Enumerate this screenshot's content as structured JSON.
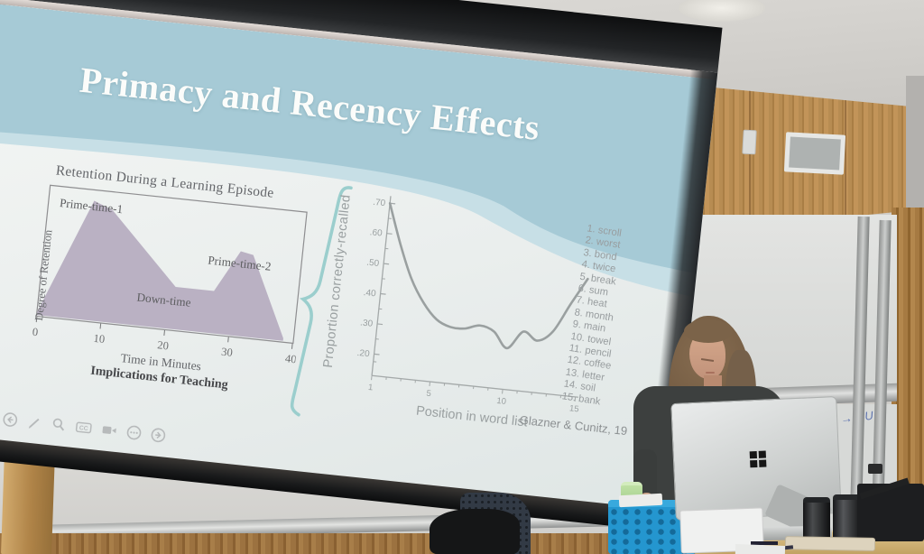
{
  "slide": {
    "title": "Primacy and Recency Effects",
    "banner_color": "#a6cad6",
    "accent_color": "#9bcecd",
    "left_chart": {
      "title": "Retention During a Learning Episode",
      "ylabel": "Degree of Retention",
      "xlabel": "Time in Minutes",
      "caption": "Implications for Teaching",
      "peak1_label": "Prime-time-1",
      "peak2_label": "Prime-time-2",
      "valley_label": "Down-time",
      "xticks": [
        "0",
        "10",
        "20",
        "30",
        "40"
      ]
    },
    "right_chart": {
      "ylabel": "Proportion correctly-recalled",
      "xlabel": "Position in word list",
      "ytick_labels": [
        ".70",
        ".60",
        ".50",
        ".40",
        ".30",
        ".20"
      ],
      "xtick_labels": [
        "1",
        "5",
        "10",
        "15"
      ]
    },
    "word_list": [
      "scroll",
      "worst",
      "bond",
      "twice",
      "break",
      "sum",
      "heat",
      "month",
      "main",
      "towel",
      "pencil",
      "coffee",
      "letter",
      "soil",
      "bank"
    ],
    "citation": "Glazner & Cunitz, 19",
    "toolbar": {
      "icons": [
        "back",
        "pen",
        "zoom",
        "closed-captions",
        "camera",
        "more",
        "forward"
      ],
      "cc_label": "CC"
    }
  },
  "whiteboard": {
    "scribble": "3x0 → 5Ue"
  },
  "chart_data": [
    {
      "type": "area",
      "title": "Retention During a Learning Episode",
      "xlabel": "Time in Minutes",
      "ylabel": "Degree of Retention",
      "caption": "Implications for Teaching",
      "xlim": [
        0,
        40
      ],
      "xticks": [
        0,
        10,
        20,
        30,
        40
      ],
      "fill_color": "#b5abbf",
      "points": [
        [
          0,
          0.03
        ],
        [
          7,
          0.96
        ],
        [
          10,
          0.9
        ],
        [
          21,
          0.34
        ],
        [
          27,
          0.34
        ],
        [
          30.5,
          0.68
        ],
        [
          32.5,
          0.66
        ],
        [
          38.5,
          0.02
        ]
      ],
      "annotations": [
        "Prime-time-1",
        "Down-time",
        "Prime-time-2"
      ]
    },
    {
      "type": "line",
      "xlabel": "Position in word list",
      "ylabel": "Proportion correctly-recalled",
      "x": [
        1,
        2,
        3,
        4,
        5,
        6,
        7,
        8,
        9,
        10,
        11,
        12,
        13,
        14,
        15
      ],
      "y": [
        0.7,
        0.57,
        0.46,
        0.385,
        0.335,
        0.315,
        0.315,
        0.33,
        0.315,
        0.265,
        0.325,
        0.3,
        0.335,
        0.43,
        0.52
      ],
      "ylim": [
        0.15,
        0.72
      ],
      "yticks": [
        0.7,
        0.6,
        0.5,
        0.4,
        0.3,
        0.2
      ],
      "xticks_labeled": [
        1,
        5,
        10,
        15
      ],
      "line_color": "#9aa0a0",
      "source": "Glazner & Cunitz, 19"
    }
  ]
}
